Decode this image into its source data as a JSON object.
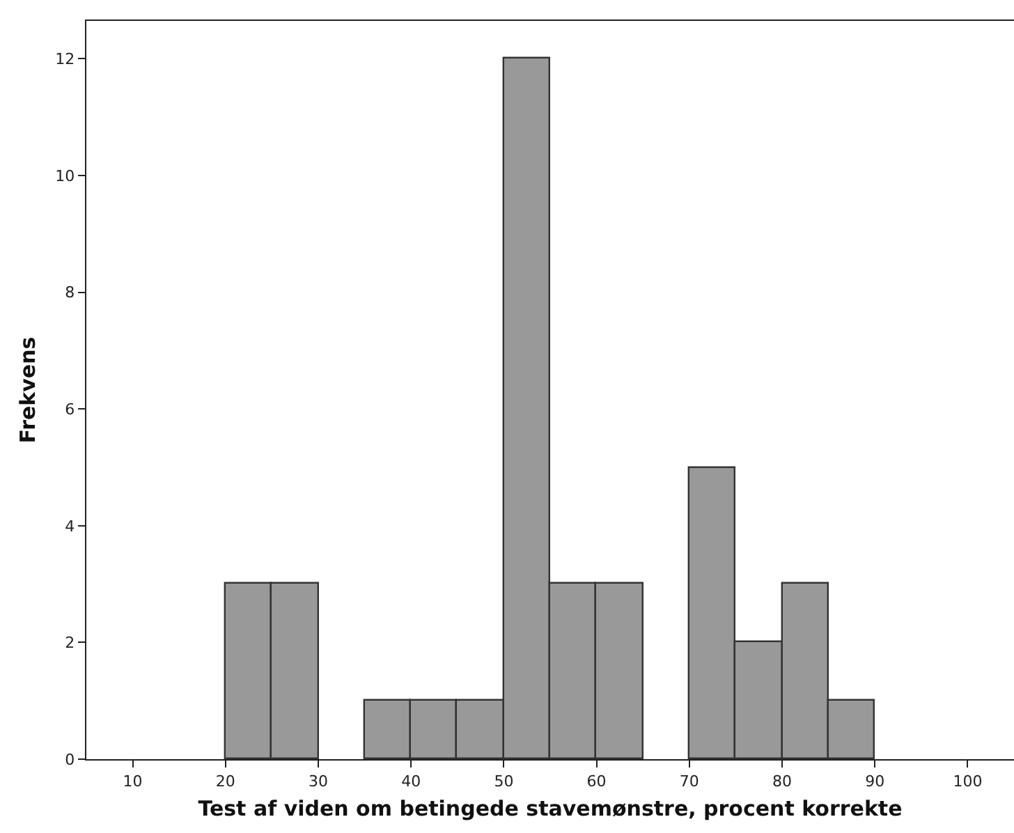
{
  "chart_data": {
    "type": "histogram",
    "xlabel": "Test af viden om betingede stavemønstre, procent korrekte",
    "ylabel": "Frekvens",
    "bins": [
      20,
      25,
      30,
      35,
      40,
      45,
      50,
      55,
      60,
      65,
      70,
      75,
      80,
      85,
      90
    ],
    "values": [
      3,
      3,
      0,
      1,
      1,
      1,
      12,
      3,
      3,
      0,
      5,
      2,
      3,
      1
    ],
    "color": "#999999",
    "xlim": [
      5,
      105
    ],
    "xticks": [
      10,
      20,
      30,
      40,
      50,
      60,
      70,
      80,
      90,
      100
    ],
    "ylim": [
      0,
      12.65
    ],
    "yticks": [
      0,
      2,
      4,
      6,
      8,
      10,
      12
    ]
  }
}
